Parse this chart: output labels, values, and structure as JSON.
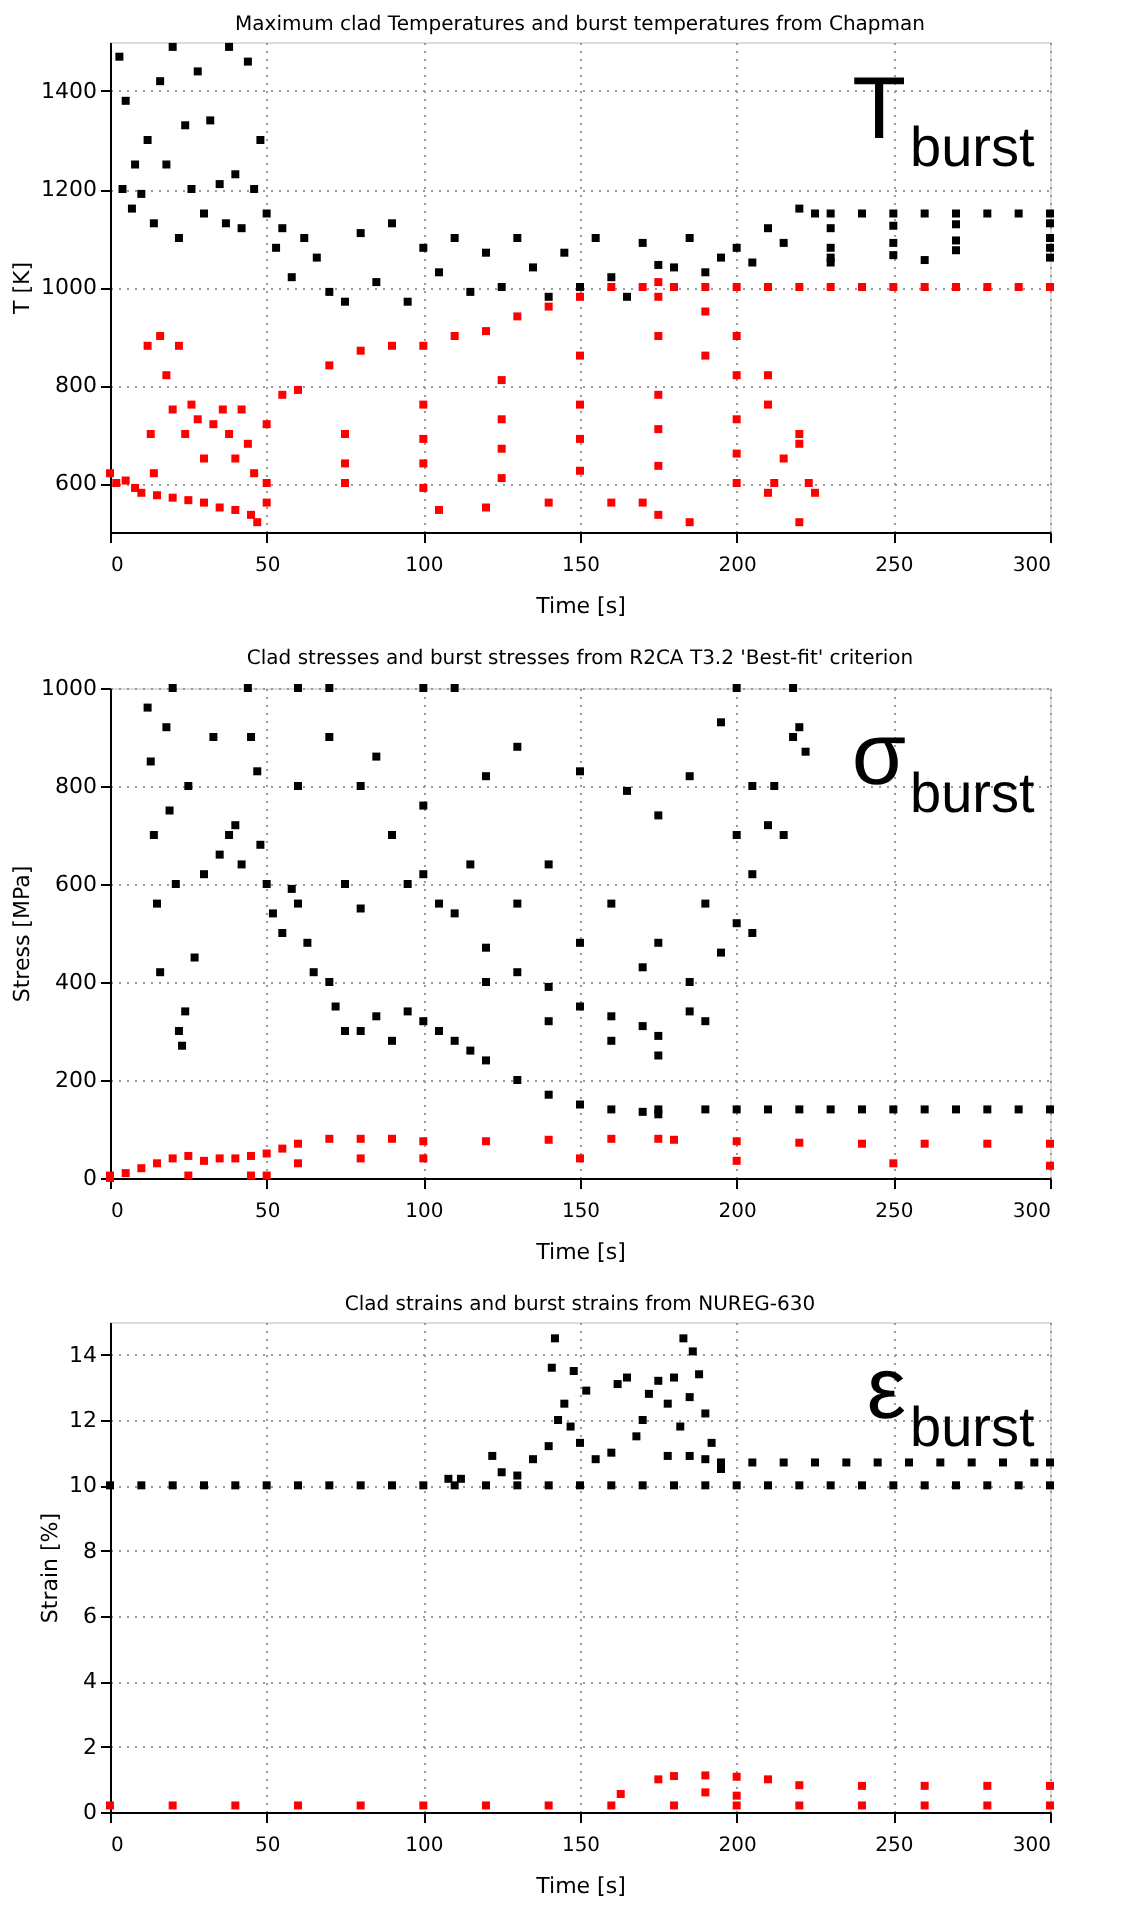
{
  "chart_data": [
    {
      "type": "scatter",
      "title": "Maximum clad Temperatures and burst temperatures from Chapman",
      "xlabel": "Time [s]",
      "ylabel": "T [K]",
      "annotations": [
        "T$_{burst}$"
      ],
      "xlim": [
        0,
        300
      ],
      "ylim": [
        500,
        1500
      ],
      "xticks": [
        0,
        50,
        100,
        150,
        200,
        250,
        300
      ],
      "yticks": [
        600,
        800,
        1000,
        1200,
        1400
      ],
      "grid": true,
      "marker": "square",
      "series": [
        {
          "color": "#000000",
          "x": [
            3,
            4,
            5,
            7,
            8,
            10,
            12,
            14,
            16,
            18,
            20,
            22,
            24,
            26,
            28,
            30,
            32,
            35,
            37,
            38,
            40,
            42,
            44,
            46,
            48,
            50,
            53,
            55,
            58,
            62,
            66,
            70,
            75,
            80,
            85,
            90,
            95,
            100,
            105,
            110,
            115,
            120,
            125,
            130,
            135,
            140,
            145,
            150,
            155,
            160,
            165,
            170,
            175,
            180,
            185,
            190,
            195,
            200,
            205,
            210,
            215,
            220,
            225,
            230,
            240,
            250,
            260,
            270,
            280,
            290,
            300,
            230,
            250,
            270,
            300,
            230,
            250,
            270,
            300,
            230,
            250,
            270,
            300,
            230,
            260,
            300
          ],
          "values": [
            1470,
            1200,
            1380,
            1160,
            1250,
            1190,
            1300,
            1130,
            1420,
            1250,
            1490,
            1100,
            1330,
            1200,
            1440,
            1150,
            1340,
            1210,
            1130,
            1490,
            1230,
            1120,
            1460,
            1200,
            1300,
            1150,
            1080,
            1120,
            1020,
            1100,
            1060,
            990,
            970,
            1110,
            1010,
            1130,
            970,
            1080,
            1030,
            1100,
            990,
            1070,
            1000,
            1100,
            1040,
            980,
            1070,
            1000,
            1100,
            1020,
            980,
            1090,
            1045,
            1040,
            1100,
            1030,
            1060,
            1080,
            1050,
            1120,
            1090,
            1160,
            1150,
            1150,
            1150,
            1150,
            1150,
            1150,
            1150,
            1150,
            1150,
            1120,
            1125,
            1128,
            1130,
            1080,
            1090,
            1095,
            1100,
            1060,
            1065,
            1075,
            1080,
            1050,
            1055,
            1060
          ]
        },
        {
          "color": "#ff0000",
          "x": [
            0,
            2,
            5,
            8,
            10,
            15,
            20,
            25,
            30,
            35,
            40,
            45,
            47,
            12,
            13,
            14,
            16,
            18,
            20,
            22,
            24,
            26,
            28,
            30,
            33,
            36,
            38,
            40,
            42,
            44,
            46,
            50,
            55,
            60,
            70,
            80,
            90,
            100,
            110,
            120,
            130,
            140,
            150,
            160,
            170,
            175,
            180,
            190,
            200,
            210,
            220,
            230,
            240,
            250,
            260,
            270,
            280,
            290,
            300,
            50,
            75,
            100,
            125,
            150,
            175,
            190,
            200,
            210,
            220,
            225,
            50,
            75,
            100,
            125,
            150,
            175,
            200,
            215,
            75,
            100,
            125,
            150,
            175,
            200,
            212,
            100,
            125,
            150,
            175,
            200,
            210,
            105,
            120,
            140,
            160,
            170,
            175,
            185,
            175,
            190,
            200,
            210,
            220,
            223,
            220
          ],
          "values": [
            620,
            600,
            605,
            590,
            580,
            575,
            570,
            565,
            560,
            550,
            545,
            535,
            520,
            880,
            700,
            620,
            900,
            820,
            750,
            880,
            700,
            760,
            730,
            650,
            720,
            750,
            700,
            650,
            750,
            680,
            620,
            720,
            780,
            790,
            840,
            870,
            880,
            880,
            900,
            910,
            940,
            960,
            980,
            1000,
            1000,
            1010,
            1000,
            1000,
            1000,
            1000,
            1000,
            1000,
            1000,
            1000,
            1000,
            1000,
            1000,
            1000,
            1000,
            600,
            700,
            760,
            810,
            860,
            900,
            860,
            820,
            760,
            680,
            580,
            560,
            640,
            690,
            730,
            760,
            780,
            730,
            650,
            600,
            640,
            670,
            690,
            710,
            660,
            600,
            590,
            610,
            625,
            635,
            600,
            580,
            545,
            550,
            560,
            560,
            560,
            535,
            520,
            980,
            950,
            900,
            820,
            700,
            600,
            520
          ]
        }
      ]
    },
    {
      "type": "scatter",
      "title": "Clad stresses and burst stresses from R2CA T3.2 'Best-fit' criterion",
      "xlabel": "Time [s]",
      "ylabel": "Stress [MPa]",
      "annotations": [
        "σ$_{burst}$"
      ],
      "xlim": [
        0,
        300
      ],
      "ylim": [
        0,
        1000
      ],
      "xticks": [
        0,
        50,
        100,
        150,
        200,
        250,
        300
      ],
      "yticks": [
        0,
        200,
        400,
        600,
        800,
        1000
      ],
      "grid": true,
      "marker": "square",
      "series": [
        {
          "color": "#000000",
          "x": [
            12,
            13,
            14,
            15,
            16,
            18,
            19,
            20,
            21,
            22,
            23,
            24,
            25,
            27,
            30,
            33,
            35,
            38,
            40,
            42,
            44,
            45,
            47,
            48,
            50,
            52,
            55,
            58,
            60,
            63,
            65,
            70,
            72,
            75,
            80,
            85,
            90,
            95,
            100,
            105,
            110,
            115,
            120,
            130,
            140,
            150,
            160,
            170,
            175,
            60,
            70,
            80,
            90,
            100,
            110,
            120,
            130,
            140,
            150,
            160,
            170,
            175,
            185,
            195,
            205,
            212,
            218,
            70,
            85,
            100,
            115,
            130,
            150,
            170,
            185,
            200,
            210,
            218,
            100,
            120,
            140,
            160,
            175,
            190,
            200,
            205,
            110,
            130,
            150,
            165,
            175,
            185,
            195,
            200,
            220,
            222,
            175,
            190,
            200,
            210,
            220,
            230,
            240,
            250,
            260,
            270,
            280,
            290,
            300,
            75,
            80,
            95,
            105,
            60,
            120,
            140,
            160,
            175,
            190,
            205,
            215
          ],
          "values": [
            960,
            850,
            700,
            560,
            420,
            920,
            750,
            1000,
            600,
            300,
            270,
            340,
            800,
            450,
            620,
            900,
            660,
            700,
            720,
            640,
            1000,
            900,
            830,
            680,
            600,
            540,
            500,
            590,
            560,
            480,
            420,
            400,
            350,
            300,
            300,
            330,
            280,
            340,
            320,
            300,
            280,
            260,
            240,
            200,
            170,
            150,
            140,
            135,
            130,
            1000,
            900,
            800,
            700,
            620,
            540,
            470,
            420,
            390,
            350,
            330,
            310,
            290,
            340,
            460,
            620,
            800,
            1000,
            1000,
            860,
            760,
            640,
            560,
            480,
            430,
            400,
            520,
            720,
            900,
            1000,
            820,
            640,
            560,
            480,
            560,
            700,
            800,
            1000,
            880,
            830,
            790,
            740,
            820,
            930,
            1000,
            920,
            870,
            140,
            140,
            140,
            140,
            140,
            140,
            140,
            140,
            140,
            140,
            140,
            140,
            140,
            600,
            550,
            600,
            560,
            800,
            400,
            320,
            280,
            250,
            320,
            500,
            700
          ]
        },
        {
          "color": "#ff0000",
          "x": [
            0,
            5,
            10,
            15,
            20,
            25,
            30,
            35,
            40,
            45,
            50,
            55,
            60,
            70,
            80,
            90,
            100,
            120,
            140,
            160,
            175,
            180,
            200,
            220,
            240,
            260,
            280,
            300,
            50,
            60,
            80,
            100,
            150,
            200,
            250,
            300,
            0,
            25,
            45
          ],
          "values": [
            0,
            10,
            20,
            30,
            40,
            45,
            35,
            40,
            40,
            45,
            50,
            60,
            70,
            80,
            80,
            80,
            75,
            75,
            78,
            80,
            80,
            78,
            75,
            72,
            70,
            70,
            70,
            70,
            5,
            30,
            40,
            40,
            40,
            35,
            30,
            25,
            5,
            5,
            5
          ]
        }
      ]
    },
    {
      "type": "scatter",
      "title": "Clad strains and burst strains from NUREG-630",
      "xlabel": "Time [s]",
      "ylabel": "Strain [%]",
      "annotations": [
        "ε$_{burst}$"
      ],
      "xlim": [
        0,
        300
      ],
      "ylim": [
        0,
        15
      ],
      "xticks": [
        0,
        50,
        100,
        150,
        200,
        250,
        300
      ],
      "yticks": [
        0,
        2,
        4,
        6,
        8,
        10,
        12,
        14
      ],
      "grid": true,
      "marker": "square",
      "series": [
        {
          "color": "#000000",
          "x": [
            0,
            10,
            20,
            30,
            40,
            50,
            60,
            70,
            80,
            90,
            100,
            110,
            120,
            130,
            140,
            150,
            160,
            170,
            180,
            190,
            200,
            210,
            220,
            230,
            240,
            250,
            260,
            270,
            280,
            290,
            300,
            195,
            205,
            215,
            225,
            235,
            245,
            255,
            265,
            275,
            285,
            295,
            300,
            108,
            112,
            122,
            125,
            130,
            135,
            140,
            141,
            142,
            143,
            145,
            147,
            148,
            150,
            152,
            155,
            160,
            162,
            165,
            168,
            170,
            172,
            175,
            178,
            180,
            182,
            183,
            185,
            186,
            188,
            190,
            192,
            195,
            178,
            185,
            190
          ],
          "values": [
            10,
            10,
            10,
            10,
            10,
            10,
            10,
            10,
            10,
            10,
            10,
            10,
            10,
            10,
            10,
            10,
            10,
            10,
            10,
            10,
            10,
            10,
            10,
            10,
            10,
            10,
            10,
            10,
            10,
            10,
            10,
            10.7,
            10.7,
            10.7,
            10.7,
            10.7,
            10.7,
            10.7,
            10.7,
            10.7,
            10.7,
            10.7,
            10.7,
            10.2,
            10.2,
            10.9,
            10.4,
            10.3,
            10.8,
            11.2,
            13.6,
            14.5,
            12.0,
            12.5,
            11.8,
            13.5,
            11.3,
            12.9,
            10.8,
            11.0,
            13.1,
            13.3,
            11.5,
            12.0,
            12.8,
            13.2,
            12.5,
            13.3,
            11.8,
            14.5,
            12.7,
            14.1,
            13.4,
            12.2,
            11.3,
            10.5,
            10.9,
            10.9,
            10.8
          ]
        },
        {
          "color": "#ff0000",
          "x": [
            0,
            20,
            40,
            60,
            80,
            100,
            120,
            140,
            160,
            180,
            200,
            220,
            240,
            260,
            280,
            300,
            175,
            180,
            190,
            200,
            210,
            220,
            240,
            260,
            280,
            300,
            163,
            190,
            200
          ],
          "values": [
            0.2,
            0.2,
            0.2,
            0.2,
            0.2,
            0.2,
            0.2,
            0.2,
            0.2,
            0.2,
            0.2,
            0.2,
            0.2,
            0.2,
            0.2,
            0.2,
            1.0,
            1.1,
            1.12,
            1.08,
            1.0,
            0.82,
            0.8,
            0.8,
            0.8,
            0.8,
            0.55,
            0.6,
            0.5
          ]
        }
      ]
    }
  ]
}
